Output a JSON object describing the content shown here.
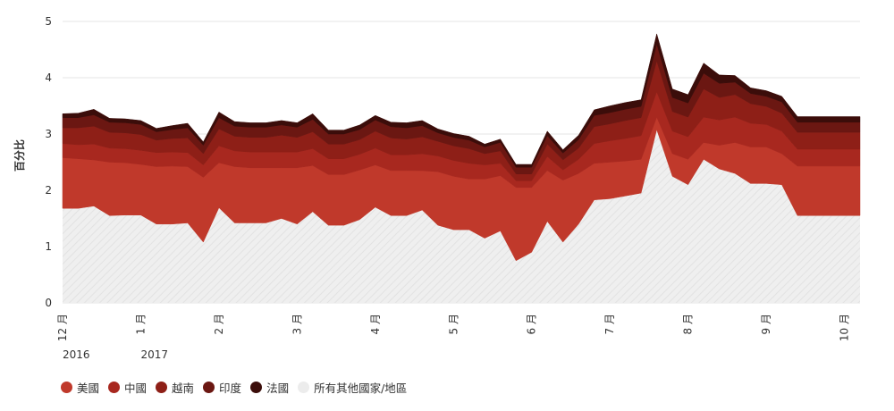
{
  "chart_data": {
    "type": "area",
    "stacked": true,
    "title": "",
    "ylabel": "百分比",
    "xlabel": "",
    "ylim": [
      0,
      5
    ],
    "yticks": [
      0,
      1,
      2,
      3,
      4,
      5
    ],
    "grid": true,
    "legend_position": "bottom-left",
    "x_tick_labels": [
      {
        "label": "12 月",
        "year": "2016",
        "index": 0
      },
      {
        "label": "1 月",
        "year": "2017",
        "index": 5
      },
      {
        "label": "2 月",
        "index": 10
      },
      {
        "label": "3 月",
        "index": 15
      },
      {
        "label": "4 月",
        "index": 20
      },
      {
        "label": "5 月",
        "index": 25
      },
      {
        "label": "6 月",
        "index": 30
      },
      {
        "label": "7 月",
        "index": 35
      },
      {
        "label": "8 月",
        "index": 40
      },
      {
        "label": "9 月",
        "index": 45
      },
      {
        "label": "10 月",
        "index": 50
      }
    ],
    "x": [
      0,
      1,
      2,
      3,
      4,
      5,
      6,
      7,
      8,
      9,
      10,
      11,
      12,
      13,
      14,
      15,
      16,
      17,
      18,
      19,
      20,
      21,
      22,
      23,
      24,
      25,
      26,
      27,
      28,
      29,
      30,
      31,
      32,
      33,
      34,
      35,
      36,
      37,
      38,
      39,
      40,
      41,
      42,
      43,
      44,
      45,
      46,
      47,
      48,
      49,
      50,
      51
    ],
    "series": [
      {
        "name": "所有其他國家/地區",
        "color": "#ececec",
        "values": [
          1.68,
          1.68,
          1.72,
          1.55,
          1.56,
          1.56,
          1.4,
          1.4,
          1.42,
          1.08,
          1.69,
          1.42,
          1.42,
          1.42,
          1.5,
          1.4,
          1.62,
          1.38,
          1.38,
          1.48,
          1.7,
          1.55,
          1.55,
          1.65,
          1.38,
          1.3,
          1.3,
          1.15,
          1.28,
          0.75,
          0.9,
          1.45,
          1.08,
          1.4,
          1.83,
          1.85,
          1.9,
          1.95,
          3.08,
          2.25,
          2.1,
          2.55,
          2.38,
          2.3,
          2.12,
          2.12,
          2.1,
          1.55,
          1.55,
          1.55,
          1.55,
          1.55
        ]
      },
      {
        "name": "美國",
        "color": "#c0392b",
        "values": [
          0.9,
          0.88,
          0.82,
          0.95,
          0.93,
          0.9,
          1.02,
          1.03,
          1.0,
          1.15,
          0.8,
          1.0,
          0.98,
          0.98,
          0.9,
          1.0,
          0.82,
          0.9,
          0.9,
          0.88,
          0.75,
          0.8,
          0.8,
          0.7,
          0.95,
          0.95,
          0.9,
          1.05,
          0.98,
          1.3,
          1.15,
          0.9,
          1.1,
          0.9,
          0.65,
          0.65,
          0.62,
          0.6,
          0.22,
          0.4,
          0.45,
          0.3,
          0.42,
          0.55,
          0.65,
          0.65,
          0.55,
          0.88,
          0.88,
          0.88,
          0.88,
          0.88
        ]
      },
      {
        "name": "中國",
        "color": "#a8281f",
        "values": [
          0.25,
          0.25,
          0.28,
          0.25,
          0.25,
          0.25,
          0.25,
          0.25,
          0.25,
          0.22,
          0.3,
          0.28,
          0.28,
          0.28,
          0.28,
          0.28,
          0.3,
          0.28,
          0.28,
          0.28,
          0.3,
          0.28,
          0.28,
          0.3,
          0.28,
          0.28,
          0.28,
          0.25,
          0.22,
          0.12,
          0.12,
          0.25,
          0.18,
          0.25,
          0.35,
          0.38,
          0.4,
          0.42,
          0.45,
          0.4,
          0.4,
          0.45,
          0.45,
          0.45,
          0.42,
          0.4,
          0.4,
          0.3,
          0.3,
          0.3,
          0.3,
          0.3
        ]
      },
      {
        "name": "越南",
        "color": "#8e1f17",
        "values": [
          0.28,
          0.3,
          0.32,
          0.28,
          0.28,
          0.28,
          0.22,
          0.24,
          0.26,
          0.2,
          0.3,
          0.26,
          0.26,
          0.26,
          0.3,
          0.26,
          0.3,
          0.26,
          0.26,
          0.26,
          0.3,
          0.3,
          0.28,
          0.3,
          0.26,
          0.26,
          0.26,
          0.2,
          0.22,
          0.12,
          0.12,
          0.22,
          0.18,
          0.2,
          0.3,
          0.3,
          0.32,
          0.32,
          0.55,
          0.35,
          0.35,
          0.5,
          0.4,
          0.4,
          0.35,
          0.32,
          0.32,
          0.3,
          0.3,
          0.3,
          0.3,
          0.3
        ]
      },
      {
        "name": "印度",
        "color": "#6b1712",
        "values": [
          0.18,
          0.18,
          0.2,
          0.18,
          0.18,
          0.18,
          0.15,
          0.16,
          0.18,
          0.15,
          0.2,
          0.18,
          0.18,
          0.18,
          0.18,
          0.18,
          0.22,
          0.18,
          0.18,
          0.18,
          0.2,
          0.2,
          0.2,
          0.2,
          0.15,
          0.15,
          0.15,
          0.12,
          0.15,
          0.12,
          0.12,
          0.15,
          0.12,
          0.15,
          0.2,
          0.2,
          0.2,
          0.2,
          0.3,
          0.25,
          0.25,
          0.28,
          0.25,
          0.22,
          0.18,
          0.18,
          0.2,
          0.18,
          0.18,
          0.18,
          0.18,
          0.18
        ]
      },
      {
        "name": "法國",
        "color": "#3b0d0a",
        "values": [
          0.07,
          0.08,
          0.1,
          0.07,
          0.07,
          0.07,
          0.06,
          0.07,
          0.08,
          0.06,
          0.1,
          0.08,
          0.08,
          0.08,
          0.08,
          0.08,
          0.1,
          0.07,
          0.07,
          0.08,
          0.08,
          0.08,
          0.09,
          0.09,
          0.07,
          0.07,
          0.07,
          0.05,
          0.06,
          0.05,
          0.05,
          0.08,
          0.06,
          0.08,
          0.1,
          0.12,
          0.12,
          0.12,
          0.18,
          0.15,
          0.15,
          0.18,
          0.15,
          0.12,
          0.1,
          0.1,
          0.1,
          0.1,
          0.1,
          0.1,
          0.1,
          0.1
        ]
      }
    ]
  },
  "legend": [
    {
      "label": "美國",
      "color": "#c0392b"
    },
    {
      "label": "中國",
      "color": "#a8281f"
    },
    {
      "label": "越南",
      "color": "#8e1f17"
    },
    {
      "label": "印度",
      "color": "#6b1712"
    },
    {
      "label": "法國",
      "color": "#3b0d0a"
    },
    {
      "label": "所有其他國家/地區",
      "color": "#ececec"
    }
  ]
}
